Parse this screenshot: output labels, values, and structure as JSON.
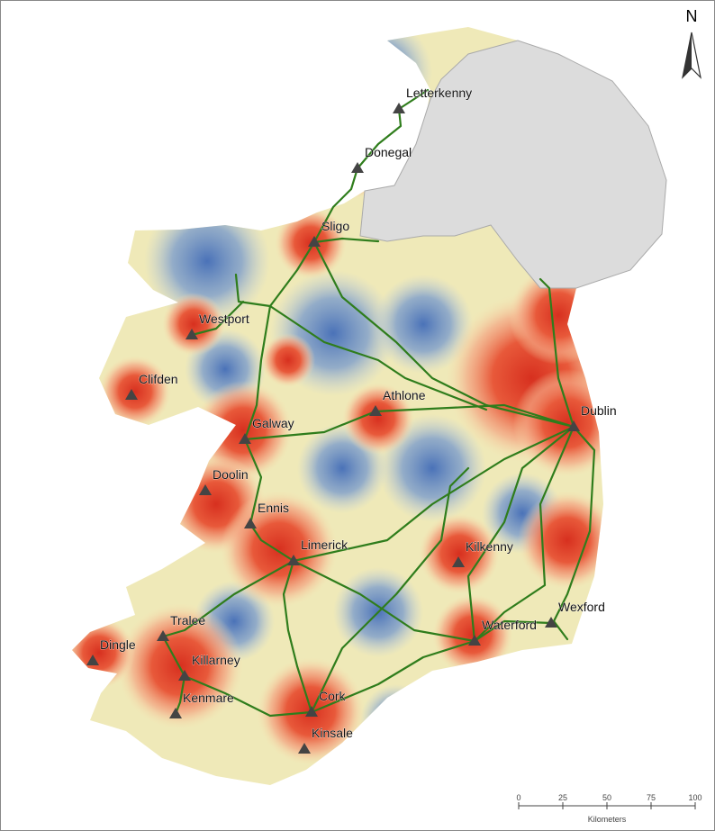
{
  "north_arrow": "N",
  "towns": [
    "Letterkenny",
    "Donegal",
    "Sligo",
    "Westport",
    "Clifden",
    "Athlone",
    "Galway",
    "Dublin",
    "Doolin",
    "Ennis",
    "Limerick",
    "Kilkenny",
    "Wexford",
    "Waterford",
    "Tralee",
    "Dingle",
    "Killarney",
    "Kenmare",
    "Cork",
    "Kinsale"
  ],
  "scale_bar": {
    "ticks": [
      0,
      25,
      50,
      75,
      100
    ],
    "unit": "Kilometers"
  }
}
